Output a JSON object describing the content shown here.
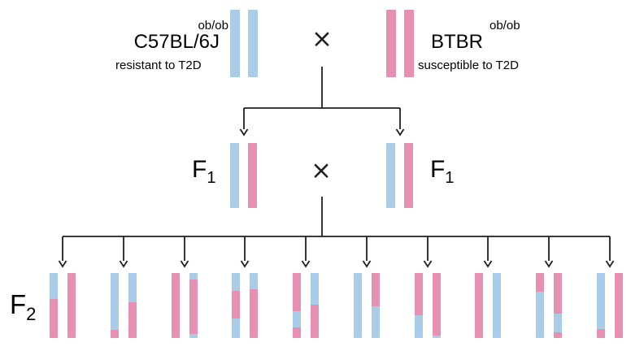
{
  "colors": {
    "chromosome_blue": "#A9CCE8",
    "chromosome_pink": "#E790B2",
    "line": "#1F1F1F",
    "text": "#000000",
    "background": "#FFFFFF"
  },
  "cross_symbol": "×",
  "parents": {
    "left": {
      "name": "C57BL/6J",
      "genotype": "ob/ob",
      "phenotype": "resistant to T2D",
      "chromosomes": [
        [
          {
            "c": "blue",
            "p": 100
          }
        ],
        [
          {
            "c": "blue",
            "p": 100
          }
        ]
      ]
    },
    "right": {
      "name": "BTBR",
      "genotype": "ob/ob",
      "phenotype": "susceptible to T2D",
      "chromosomes": [
        [
          {
            "c": "pink",
            "p": 100
          }
        ],
        [
          {
            "c": "pink",
            "p": 100
          }
        ]
      ]
    }
  },
  "f1": {
    "label": "F",
    "label_subscript": "1",
    "left_pair": [
      [
        {
          "c": "blue",
          "p": 100
        }
      ],
      [
        {
          "c": "pink",
          "p": 100
        }
      ]
    ],
    "right_pair": [
      [
        {
          "c": "blue",
          "p": 100
        }
      ],
      [
        {
          "c": "pink",
          "p": 100
        }
      ]
    ]
  },
  "f2": {
    "label": "F",
    "label_subscript": "2",
    "pairs": [
      [
        [
          {
            "c": "blue",
            "p": 40
          },
          {
            "c": "pink",
            "p": 60
          }
        ],
        [
          {
            "c": "pink",
            "p": 100
          }
        ]
      ],
      [
        [
          {
            "c": "blue",
            "p": 88
          },
          {
            "c": "pink",
            "p": 12
          }
        ],
        [
          {
            "c": "blue",
            "p": 45
          },
          {
            "c": "pink",
            "p": 55
          }
        ]
      ],
      [
        [
          {
            "c": "pink",
            "p": 100
          }
        ],
        [
          {
            "c": "blue",
            "p": 10
          },
          {
            "c": "pink",
            "p": 84
          },
          {
            "c": "blue",
            "p": 6
          }
        ]
      ],
      [
        [
          {
            "c": "blue",
            "p": 27
          },
          {
            "c": "pink",
            "p": 43
          },
          {
            "c": "blue",
            "p": 30
          }
        ],
        [
          {
            "c": "blue",
            "p": 25
          },
          {
            "c": "pink",
            "p": 75
          }
        ]
      ],
      [
        [
          {
            "c": "pink",
            "p": 59
          },
          {
            "c": "blue",
            "p": 25
          },
          {
            "c": "pink",
            "p": 16
          }
        ],
        [
          {
            "c": "blue",
            "p": 49
          },
          {
            "c": "pink",
            "p": 51
          }
        ]
      ],
      [
        [
          {
            "c": "blue",
            "p": 100
          }
        ],
        [
          {
            "c": "pink",
            "p": 51
          },
          {
            "c": "blue",
            "p": 49
          }
        ]
      ],
      [
        [
          {
            "c": "pink",
            "p": 65
          },
          {
            "c": "blue",
            "p": 35
          }
        ],
        [
          {
            "c": "pink",
            "p": 96
          },
          {
            "c": "blue",
            "p": 4
          }
        ]
      ],
      [
        [
          {
            "c": "pink",
            "p": 100
          }
        ],
        [
          {
            "c": "blue",
            "p": 100
          }
        ]
      ],
      [
        [
          {
            "c": "pink",
            "p": 29
          },
          {
            "c": "blue",
            "p": 71
          }
        ],
        [
          {
            "c": "pink",
            "p": 63
          },
          {
            "c": "blue",
            "p": 28
          },
          {
            "c": "pink",
            "p": 9
          }
        ]
      ],
      [
        [
          {
            "c": "blue",
            "p": 86
          },
          {
            "c": "pink",
            "p": 14
          }
        ],
        [
          {
            "c": "pink",
            "p": 100
          }
        ]
      ]
    ]
  }
}
